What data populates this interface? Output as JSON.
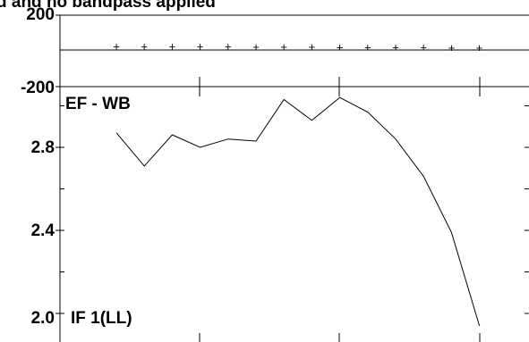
{
  "chart_data": [
    {
      "type": "scatter",
      "panel": "phase",
      "title": "d and no bandpass applied",
      "y_tick_labels": [
        "200",
        "-200"
      ],
      "ylim": [
        -200,
        200
      ],
      "reference_line": 0,
      "x": [
        1,
        2,
        3,
        4,
        5,
        6,
        7,
        8,
        9,
        10,
        11,
        12,
        13,
        14
      ],
      "values": [
        18,
        18,
        18,
        18,
        17,
        16,
        15,
        15,
        14,
        13,
        12,
        12,
        11,
        10
      ],
      "marker": "+"
    },
    {
      "type": "line",
      "panel": "amplitude",
      "annotations": [
        "EF - WB",
        "IF 1(LL)"
      ],
      "y_tick_labels": [
        "2.8",
        "2.4",
        "2.0"
      ],
      "ylim": [
        1.95,
        3.05
      ],
      "x": [
        1,
        2,
        3,
        4,
        5,
        6,
        7,
        8,
        9,
        10,
        11,
        12,
        13,
        14
      ],
      "values": [
        2.87,
        2.71,
        2.86,
        2.8,
        2.84,
        2.83,
        3.03,
        2.93,
        3.04,
        2.97,
        2.84,
        2.66,
        2.39,
        1.94
      ]
    }
  ],
  "colors": {
    "axes": "#000000",
    "background": "#ffffff"
  }
}
